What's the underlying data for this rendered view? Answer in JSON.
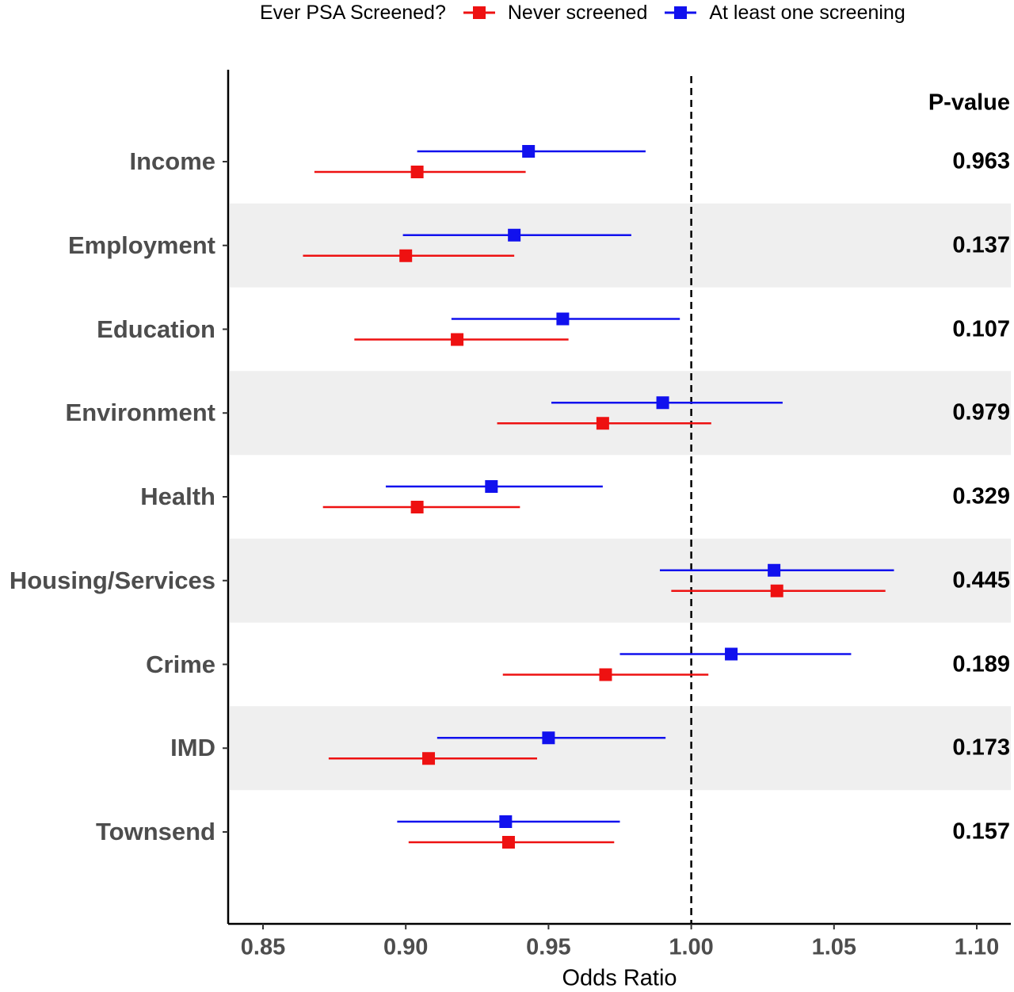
{
  "legend": {
    "title": "Ever PSA Screened?",
    "items": [
      {
        "label": "Never screened",
        "color": "#ee1111"
      },
      {
        "label": "At least one screening",
        "color": "#1111ee"
      }
    ]
  },
  "pvalue_header": "P-value",
  "chart_data": {
    "type": "forest",
    "xlabel": "Odds Ratio",
    "xlim": [
      0.837,
      1.112
    ],
    "xticks": [
      "0.85",
      "0.90",
      "0.95",
      "1.00",
      "1.05",
      "1.10"
    ],
    "reference_line": 1.0,
    "alternate_row_shading": true,
    "legend_position": "top",
    "categories": [
      "Income",
      "Employment",
      "Education",
      "Environment",
      "Health",
      "Housing/Services",
      "Crime",
      "IMD",
      "Townsend"
    ],
    "pvalues": [
      "0.963",
      "0.137",
      "0.107",
      "0.979",
      "0.329",
      "0.445",
      "0.189",
      "0.173",
      "0.157"
    ],
    "series": [
      {
        "name": "At least one screening",
        "color": "#1111ee",
        "or": [
          0.943,
          0.938,
          0.955,
          0.99,
          0.93,
          1.029,
          1.014,
          0.95,
          0.935
        ],
        "lower": [
          0.904,
          0.899,
          0.916,
          0.951,
          0.893,
          0.989,
          0.975,
          0.911,
          0.897
        ],
        "upper": [
          0.984,
          0.979,
          0.996,
          1.032,
          0.969,
          1.071,
          1.056,
          0.991,
          0.975
        ]
      },
      {
        "name": "Never screened",
        "color": "#ee1111",
        "or": [
          0.904,
          0.9,
          0.918,
          0.969,
          0.904,
          1.03,
          0.97,
          0.908,
          0.936
        ],
        "lower": [
          0.868,
          0.864,
          0.882,
          0.932,
          0.871,
          0.993,
          0.934,
          0.873,
          0.901
        ],
        "upper": [
          0.942,
          0.938,
          0.957,
          1.007,
          0.94,
          1.068,
          1.006,
          0.946,
          0.973
        ]
      }
    ]
  }
}
